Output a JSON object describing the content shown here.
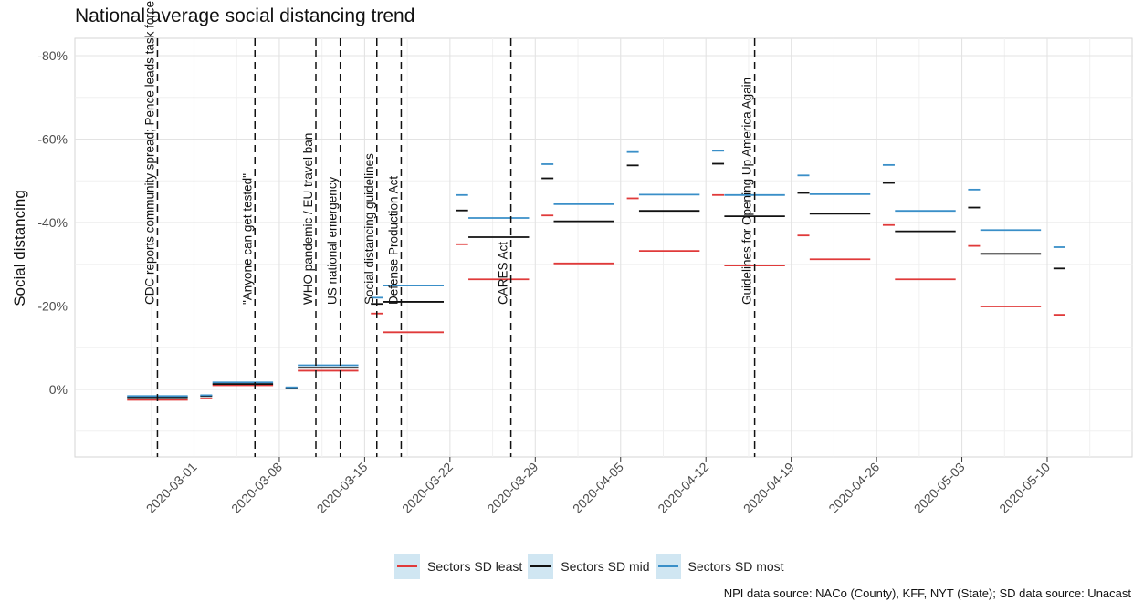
{
  "title": "National average social distancing trend",
  "caption": "NPI data source: NACo (County), KFF, NYT (State); SD data source: Unacast",
  "colors": {
    "least": "#e03a3a",
    "mid": "#111111",
    "most": "#3a8fc8",
    "legend_bg": "#d0e6f2"
  },
  "chart_data": {
    "type": "line",
    "title": "National average social distancing trend",
    "xlabel": "",
    "ylabel": "Social distancing",
    "x_ticks": [
      "2020-03-01",
      "2020-03-08",
      "2020-03-15",
      "2020-03-22",
      "2020-03-29",
      "2020-04-05",
      "2020-04-12",
      "2020-04-19",
      "2020-04-26",
      "2020-05-03",
      "2020-05-10"
    ],
    "y_ticks": [
      "-80%",
      "-60%",
      "-40%",
      "-20%",
      "0%"
    ],
    "ylim": [
      -80,
      0
    ],
    "y_axis_reversed": true,
    "grid": true,
    "legend_position": "bottom",
    "series": [
      {
        "name": "Sectors SD least",
        "color": "#e03a3a",
        "segments": [
          [
            "2020-02-25",
            "2020-02-29",
            2.5
          ],
          [
            "2020-03-02",
            "2020-03-02",
            2.2
          ],
          [
            "2020-03-03",
            "2020-03-07",
            -1.0
          ],
          [
            "2020-03-09",
            "2020-03-09",
            -0.4
          ],
          [
            "2020-03-10",
            "2020-03-14",
            -4.5
          ],
          [
            "2020-03-16",
            "2020-03-16",
            -18.2
          ],
          [
            "2020-03-17",
            "2020-03-21",
            -13.7
          ],
          [
            "2020-03-23",
            "2020-03-23",
            -34.8
          ],
          [
            "2020-03-24",
            "2020-03-28",
            -26.4
          ],
          [
            "2020-03-30",
            "2020-03-30",
            -41.7
          ],
          [
            "2020-03-31",
            "2020-04-04",
            -30.2
          ],
          [
            "2020-04-06",
            "2020-04-06",
            -45.8
          ],
          [
            "2020-04-07",
            "2020-04-11",
            -33.2
          ],
          [
            "2020-04-13",
            "2020-04-13",
            -46.6
          ],
          [
            "2020-04-14",
            "2020-04-18",
            -29.7
          ],
          [
            "2020-04-20",
            "2020-04-20",
            -36.9
          ],
          [
            "2020-04-21",
            "2020-04-25",
            -31.2
          ],
          [
            "2020-04-27",
            "2020-04-27",
            -39.4
          ],
          [
            "2020-04-28",
            "2020-05-02",
            -26.4
          ],
          [
            "2020-05-04",
            "2020-05-04",
            -34.4
          ],
          [
            "2020-05-05",
            "2020-05-09",
            -19.9
          ],
          [
            "2020-05-11",
            "2020-05-11",
            -17.9
          ]
        ]
      },
      {
        "name": "Sectors SD mid",
        "color": "#111111",
        "segments": [
          [
            "2020-02-25",
            "2020-02-29",
            1.9
          ],
          [
            "2020-03-02",
            "2020-03-02",
            1.6
          ],
          [
            "2020-03-03",
            "2020-03-07",
            -1.3
          ],
          [
            "2020-03-09",
            "2020-03-09",
            -0.3
          ],
          [
            "2020-03-10",
            "2020-03-14",
            -5.2
          ],
          [
            "2020-03-16",
            "2020-03-16",
            -20.5
          ],
          [
            "2020-03-17",
            "2020-03-21",
            -21.0
          ],
          [
            "2020-03-23",
            "2020-03-23",
            -42.9
          ],
          [
            "2020-03-24",
            "2020-03-28",
            -36.5
          ],
          [
            "2020-03-30",
            "2020-03-30",
            -50.6
          ],
          [
            "2020-03-31",
            "2020-04-04",
            -40.3
          ],
          [
            "2020-04-06",
            "2020-04-06",
            -53.7
          ],
          [
            "2020-04-07",
            "2020-04-11",
            -42.8
          ],
          [
            "2020-04-13",
            "2020-04-13",
            -54.1
          ],
          [
            "2020-04-14",
            "2020-04-18",
            -41.5
          ],
          [
            "2020-04-20",
            "2020-04-20",
            -47.1
          ],
          [
            "2020-04-21",
            "2020-04-25",
            -42.1
          ],
          [
            "2020-04-27",
            "2020-04-27",
            -49.5
          ],
          [
            "2020-04-28",
            "2020-05-02",
            -37.9
          ],
          [
            "2020-05-04",
            "2020-05-04",
            -43.6
          ],
          [
            "2020-05-05",
            "2020-05-09",
            -32.5
          ],
          [
            "2020-05-11",
            "2020-05-11",
            -29.0
          ]
        ]
      },
      {
        "name": "Sectors SD most",
        "color": "#3a8fc8",
        "segments": [
          [
            "2020-02-25",
            "2020-02-29",
            1.6
          ],
          [
            "2020-03-02",
            "2020-03-02",
            1.4
          ],
          [
            "2020-03-03",
            "2020-03-07",
            -1.7
          ],
          [
            "2020-03-09",
            "2020-03-09",
            -0.5
          ],
          [
            "2020-03-10",
            "2020-03-14",
            -5.8
          ],
          [
            "2020-03-16",
            "2020-03-16",
            -22.0
          ],
          [
            "2020-03-17",
            "2020-03-21",
            -24.9
          ],
          [
            "2020-03-23",
            "2020-03-23",
            -46.6
          ],
          [
            "2020-03-24",
            "2020-03-28",
            -41.1
          ],
          [
            "2020-03-30",
            "2020-03-30",
            -54.0
          ],
          [
            "2020-03-31",
            "2020-04-04",
            -44.4
          ],
          [
            "2020-04-06",
            "2020-04-06",
            -56.9
          ],
          [
            "2020-04-07",
            "2020-04-11",
            -46.7
          ],
          [
            "2020-04-13",
            "2020-04-13",
            -57.2
          ],
          [
            "2020-04-14",
            "2020-04-18",
            -46.6
          ],
          [
            "2020-04-20",
            "2020-04-20",
            -51.3
          ],
          [
            "2020-04-21",
            "2020-04-25",
            -46.8
          ],
          [
            "2020-04-27",
            "2020-04-27",
            -53.8
          ],
          [
            "2020-04-28",
            "2020-05-02",
            -42.8
          ],
          [
            "2020-05-04",
            "2020-05-04",
            -47.9
          ],
          [
            "2020-05-05",
            "2020-05-09",
            -38.2
          ],
          [
            "2020-05-11",
            "2020-05-11",
            -34.1
          ]
        ]
      }
    ],
    "events": [
      {
        "date": "2020-02-27",
        "label": "CDC reports community spread; Pence leads task force"
      },
      {
        "date": "2020-03-06",
        "label": "\"Anyone can get tested\""
      },
      {
        "date": "2020-03-11",
        "label": "WHO pandemic / EU travel ban"
      },
      {
        "date": "2020-03-13",
        "label": "US national emergency"
      },
      {
        "date": "2020-03-16",
        "label": "Social distancing guidelines"
      },
      {
        "date": "2020-03-18",
        "label": "Defense Production Act"
      },
      {
        "date": "2020-03-27",
        "label": "CARES Act"
      },
      {
        "date": "2020-04-16",
        "label": "Guidelines for Opening Up America Again"
      }
    ]
  }
}
